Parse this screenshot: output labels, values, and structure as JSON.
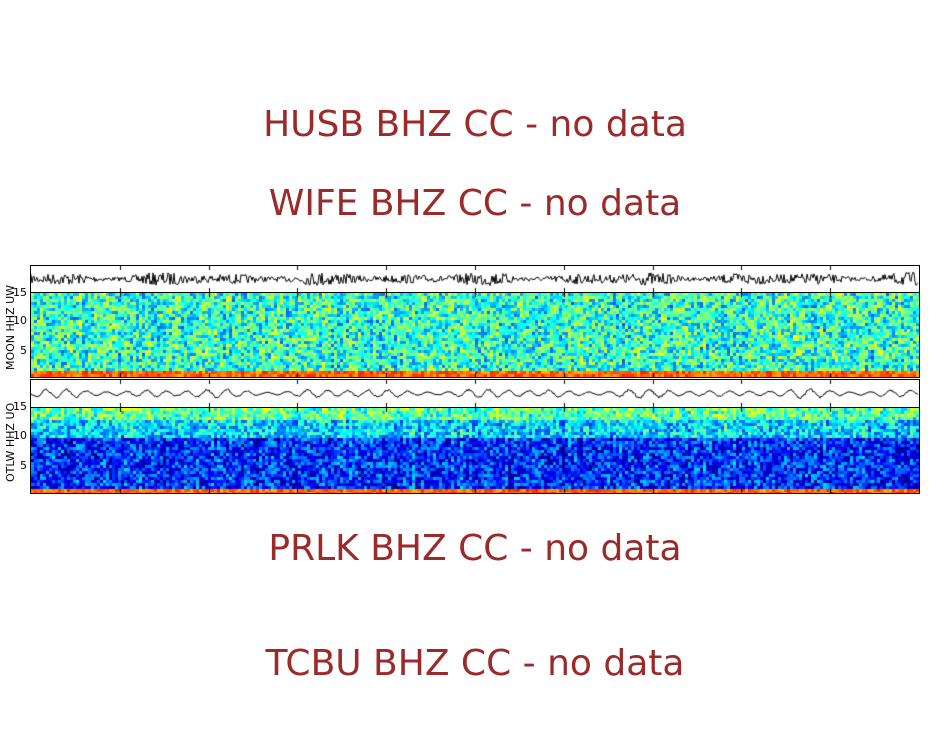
{
  "messages": [
    "HUSB BHZ CC - no data",
    "WIFE BHZ CC - no data",
    "PRLK BHZ CC - no data",
    "TCBU BHZ CC - no data"
  ],
  "chart_data": {
    "type": "heatmap",
    "title": "",
    "xlabel": "",
    "x_tick_count": 10,
    "ylim": [
      0.5,
      15.5
    ],
    "yticks": [
      "5",
      "10",
      "15"
    ],
    "colormap": "jet",
    "panels": [
      {
        "station": "MOON HHZ UW",
        "ylabel": "MOON HHZ UW",
        "mean_level": 0.42,
        "noise_level": 0.18,
        "waveform_amplitude": 0.35
      },
      {
        "station": "OTLW HHZ UO",
        "ylabel": "OTLW HHZ UO",
        "mean_level": 0.22,
        "noise_level": 0.15,
        "waveform_amplitude": 0.2
      }
    ]
  }
}
